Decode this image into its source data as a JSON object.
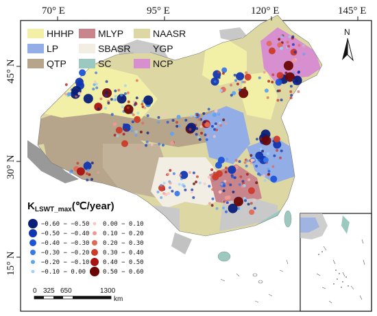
{
  "axes": {
    "lon_labels": [
      "70° E",
      "95° E",
      "120° E",
      "145° E"
    ],
    "lat_labels": [
      "45° N",
      "30° N",
      "15° N"
    ]
  },
  "north_arrow": {
    "label": "N"
  },
  "regions": [
    {
      "code": "HHHP",
      "color": "#f1f0a6"
    },
    {
      "code": "MLYP",
      "color": "#c8868c"
    },
    {
      "code": "NAASR",
      "color": "#ddd7a4"
    },
    {
      "code": "LP",
      "color": "#93aee6"
    },
    {
      "code": "SBASR",
      "color": "#f3eee4"
    },
    {
      "code": "YGP",
      "color": "#c9c9c9"
    },
    {
      "code": "QTP",
      "color": "#b6a48b"
    },
    {
      "code": "SC",
      "color": "#9bc8bf"
    },
    {
      "code": "NCP",
      "color": "#d78fcf"
    }
  ],
  "k_legend": {
    "title_main": "K",
    "title_sub": "LSWT_max",
    "title_unit": "(℃/year)",
    "negative": [
      {
        "label": "−0.60 − −0.50",
        "color": "#0a1f78",
        "size": 7
      },
      {
        "label": "−0.50 − −0.40",
        "color": "#1236b0",
        "size": 6
      },
      {
        "label": "−0.40 − −0.30",
        "color": "#1c54d8",
        "size": 5
      },
      {
        "label": "−0.30 − −0.20",
        "color": "#3a78e8",
        "size": 4
      },
      {
        "label": "−0.20 − −0.10",
        "color": "#5fa3f0",
        "size": 3
      },
      {
        "label": "−0.10 − 0.00",
        "color": "#9fd0f6",
        "size": 2.4
      }
    ],
    "positive": [
      {
        "label": "0.00 − 0.10",
        "color": "#f7c4c4",
        "size": 2.4
      },
      {
        "label": "0.10 − 0.20",
        "color": "#ee9a92",
        "size": 3
      },
      {
        "label": "0.20 − 0.30",
        "color": "#e06a5a",
        "size": 4
      },
      {
        "label": "0.30 − 0.40",
        "color": "#cc3a2a",
        "size": 5
      },
      {
        "label": "0.40 − 0.50",
        "color": "#a81212",
        "size": 6
      },
      {
        "label": "0.50 − 0.60",
        "color": "#6a0606",
        "size": 7
      }
    ]
  },
  "scale_bar": {
    "ticks": [
      "0",
      "325",
      "650",
      "1300"
    ],
    "unit": "km"
  }
}
